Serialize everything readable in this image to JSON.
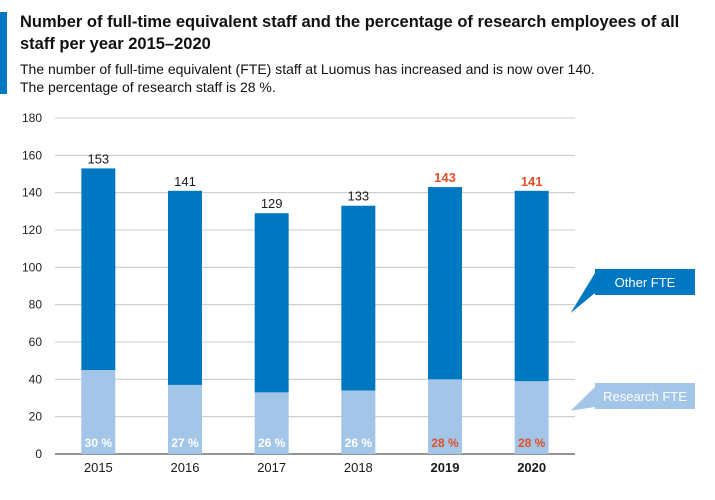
{
  "header": {
    "title": "Number of full-time equivalent staff and the percentage of research employees of all staff per year 2015–2020",
    "subtitle_line1": "The number of full-time equivalent (FTE) staff at Luomus has increased and is now over 140.",
    "subtitle_line2": "The percentage of research staff is 28 %."
  },
  "colors": {
    "other_fte": "#0078c1",
    "research_fte": "#a3c6e8",
    "highlight_text": "#e0502a",
    "accent": "#0078c1"
  },
  "chart_data": {
    "type": "bar",
    "stacked": true,
    "categories": [
      "2015",
      "2016",
      "2017",
      "2018",
      "2019",
      "2020"
    ],
    "totals": [
      153,
      141,
      129,
      133,
      143,
      141
    ],
    "total_labels": [
      "153",
      "141",
      "129",
      "133",
      "143",
      "141"
    ],
    "research_percent_labels": [
      "30 %",
      "27 %",
      "26 %",
      "26 %",
      "28 %",
      "28 %"
    ],
    "highlighted_categories": [
      "2019",
      "2020"
    ],
    "series": [
      {
        "name": "Research FTE",
        "values": [
          45,
          37,
          33,
          34,
          40,
          39
        ]
      },
      {
        "name": "Other FTE",
        "values": [
          108,
          104,
          96,
          99,
          103,
          102
        ]
      }
    ],
    "ylim": [
      0,
      180
    ],
    "yticks": [
      0,
      20,
      40,
      60,
      80,
      100,
      120,
      140,
      160,
      180
    ],
    "grid": true,
    "legend": "right, callout labels beside last bar"
  }
}
